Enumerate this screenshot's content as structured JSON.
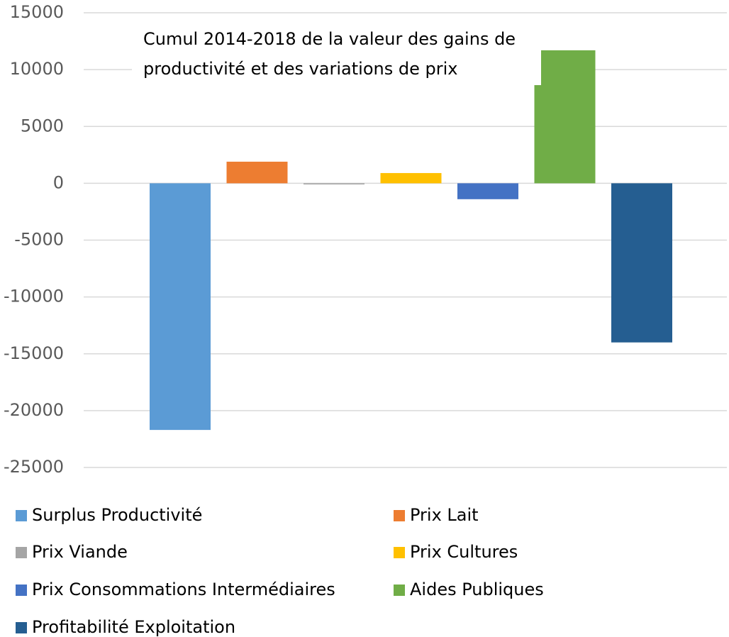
{
  "chart_data": {
    "type": "bar",
    "title": "Cumul 2014-2018 de la valeur des gains de productivité et des variations de prix",
    "categories": [
      null
    ],
    "series": [
      {
        "name": "Surplus Productivité",
        "color": "#5b9bd5",
        "values": [
          -21700
        ]
      },
      {
        "name": "Prix Lait",
        "color": "#ed7d31",
        "values": [
          1900
        ]
      },
      {
        "name": "Prix Viande",
        "color": "#a5a5a5",
        "values": [
          -100
        ]
      },
      {
        "name": "Prix Cultures",
        "color": "#ffc000",
        "values": [
          900
        ]
      },
      {
        "name": "Prix Consommations Intermédiaires",
        "color": "#4472c4",
        "values": [
          -1400
        ]
      },
      {
        "name": "Aides Publiques",
        "color": "#70ad47",
        "values": [
          11700
        ]
      },
      {
        "name": "Profitabilité Exploitation",
        "color": "#255e91",
        "values": [
          -14000
        ]
      }
    ],
    "ylim": [
      -25000,
      15000
    ],
    "yticks": [
      -25000,
      -20000,
      -15000,
      -10000,
      -5000,
      0,
      5000,
      10000,
      15000
    ],
    "grid": true,
    "legend": "bottom"
  }
}
